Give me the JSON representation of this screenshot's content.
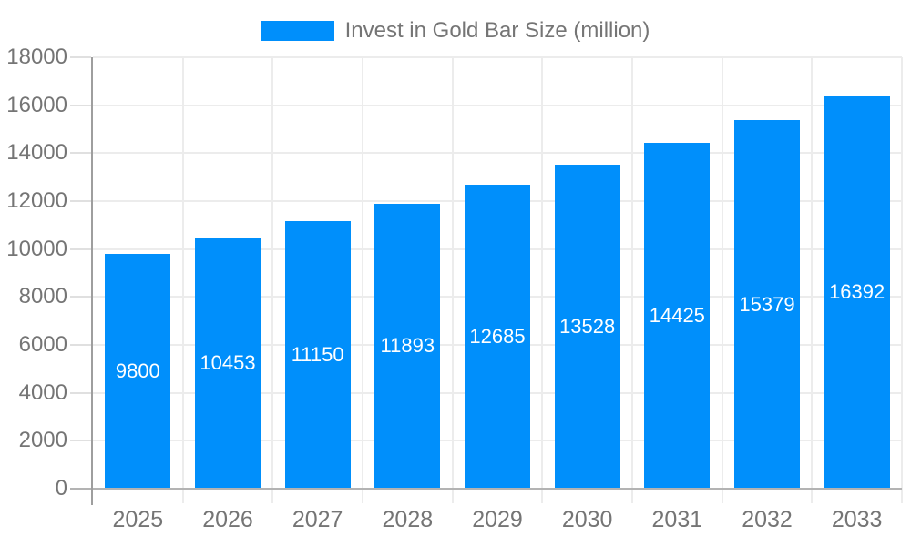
{
  "legend": {
    "label": "Invest in Gold Bar Size (million)"
  },
  "colors": {
    "bar": "#008FFB",
    "axis_line": "#9e9e9e",
    "baseline": "#b3b3b3",
    "gridline": "#ececec",
    "tick": "#e0e0e0",
    "axis_label_text": "#757575",
    "bar_label_text": "#ffffff",
    "background": "#ffffff"
  },
  "chart_data": {
    "type": "bar",
    "title": "Invest in Gold Bar Size (million)",
    "categories": [
      "2025",
      "2026",
      "2027",
      "2028",
      "2029",
      "2030",
      "2031",
      "2032",
      "2033"
    ],
    "values": [
      9800,
      10453,
      11150,
      11893,
      12685,
      13528,
      14425,
      15379,
      16392
    ],
    "bar_value_labels": [
      "9800",
      "10453",
      "11150",
      "11893",
      "12685",
      "13528",
      "14425",
      "15379",
      "16392"
    ],
    "xlabel": "",
    "ylabel": "",
    "ylim": [
      0,
      18000
    ],
    "ytick_step": 2000,
    "ytick_labels": [
      "0",
      "2000",
      "4000",
      "6000",
      "8000",
      "10000",
      "12000",
      "14000",
      "16000",
      "18000"
    ],
    "grid": true,
    "legend_position": "top-center",
    "bar_labels_inside": true
  }
}
